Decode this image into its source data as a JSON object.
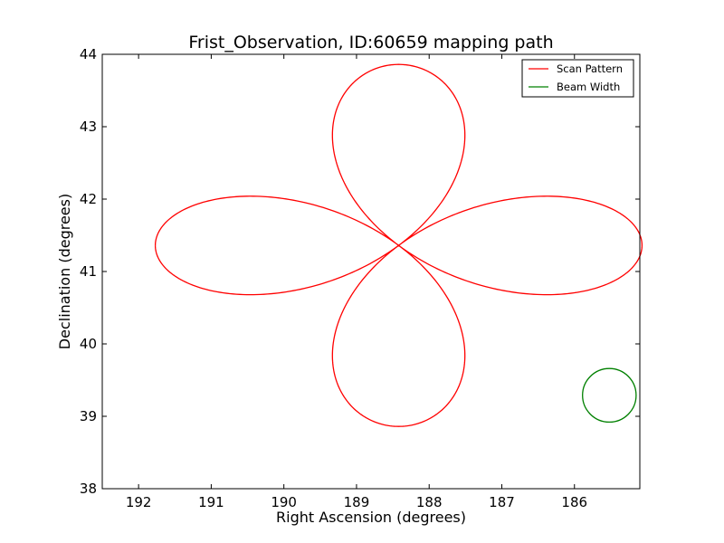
{
  "chart_data": {
    "type": "line",
    "title": "Frist_Observation, ID:60659 mapping path",
    "xlabel": "Right Ascension (degrees)",
    "ylabel": "Declination (degrees)",
    "xlim": [
      192.5,
      185.1
    ],
    "ylim": [
      38,
      44
    ],
    "x_inverted": true,
    "xticks": [
      192,
      191,
      190,
      189,
      188,
      187,
      186
    ],
    "yticks": [
      38,
      39,
      40,
      41,
      42,
      43,
      44
    ],
    "xtick_labels": [
      "192",
      "191",
      "190",
      "189",
      "188",
      "187",
      "186"
    ],
    "ytick_labels": [
      "38",
      "39",
      "40",
      "41",
      "42",
      "43",
      "44"
    ],
    "grid": false,
    "legend_position": "top-right",
    "series": [
      {
        "name": "Scan Pattern",
        "kind": "four-petal rose curve",
        "color": "#ff0000",
        "center": {
          "x": 188.42,
          "y": 41.36
        },
        "petal_reach_x": 3.35,
        "petal_reach_y": 2.5,
        "start_x": 191.8
      },
      {
        "name": "Beam Width",
        "kind": "circle",
        "color": "#008000",
        "center": {
          "x": 185.52,
          "y": 39.29
        },
        "radius_y": 0.37
      }
    ]
  }
}
